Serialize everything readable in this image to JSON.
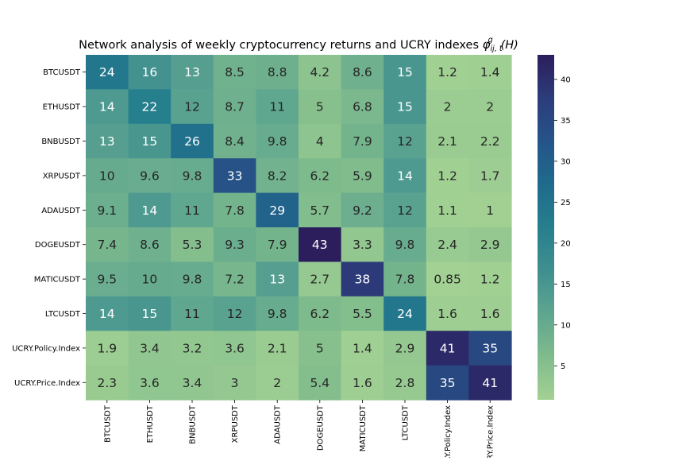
{
  "chart_data": {
    "type": "heatmap",
    "title_text": "Network analysis of weekly cryptocurrency returns and UCRY indexes ",
    "title_math": "φ",
    "title_math_sup": "g",
    "title_math_sub": "ij, t",
    "title_math_suffix": "(H)",
    "rows": [
      "BTCUSDT",
      "ETHUSDT",
      "BNBUSDT",
      "XRPUSDT",
      "ADAUSDT",
      "DOGEUSDT",
      "MATICUSDT",
      "LTCUSDT",
      "UCRY.Policy.Index",
      "UCRY.Price.Index"
    ],
    "columns": [
      "BTCUSDT",
      "ETHUSDT",
      "BNBUSDT",
      "XRPUSDT",
      "ADAUSDT",
      "DOGEUSDT",
      "MATICUSDT",
      "LTCUSDT",
      "UCRY.Policy.Index",
      "UCRY.Price.Index"
    ],
    "values": [
      [
        24,
        16,
        13,
        8.5,
        8.8,
        4.2,
        8.6,
        15,
        1.2,
        1.4
      ],
      [
        14,
        22,
        12,
        8.7,
        11,
        5,
        6.8,
        15,
        2,
        2
      ],
      [
        13,
        15,
        26,
        8.4,
        9.8,
        4,
        7.9,
        12,
        2.1,
        2.2
      ],
      [
        10,
        9.6,
        9.8,
        33,
        8.2,
        6.2,
        5.9,
        14,
        1.2,
        1.7
      ],
      [
        9.1,
        14,
        11,
        7.8,
        29,
        5.7,
        9.2,
        12,
        1.1,
        1
      ],
      [
        7.4,
        8.6,
        5.3,
        9.3,
        7.9,
        43,
        3.3,
        9.8,
        2.4,
        2.9
      ],
      [
        9.5,
        10,
        9.8,
        7.2,
        13,
        2.7,
        38,
        7.8,
        0.85,
        1.2
      ],
      [
        14,
        15,
        11,
        12,
        9.8,
        6.2,
        5.5,
        24,
        1.6,
        1.6
      ],
      [
        1.9,
        3.4,
        3.2,
        3.6,
        2.1,
        5,
        1.4,
        2.9,
        41,
        35
      ],
      [
        2.3,
        3.6,
        3.4,
        3,
        2,
        5.4,
        1.6,
        2.8,
        35,
        41
      ]
    ],
    "colorscale": "crest",
    "colormap_stops": [
      "#a3d193",
      "#7fbb8c",
      "#5ea590",
      "#3f8f8f",
      "#267f8d",
      "#1f6b8c",
      "#255489",
      "#2c3c7a",
      "#2c1e5d"
    ],
    "vmin": 0.85,
    "vmax": 43,
    "colorbar_ticks": [
      5,
      10,
      15,
      20,
      25,
      30,
      35,
      40
    ],
    "annotation_light_text_threshold": 0.27
  }
}
